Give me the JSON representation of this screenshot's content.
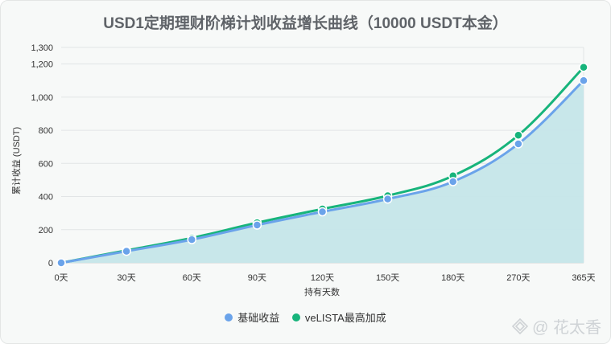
{
  "colors": {
    "base": "#6aa3ea",
    "velista": "#17b47b",
    "area": "#c5e6e9"
  },
  "watermark": {
    "text": "@ 花太香",
    "icon": "diamond-logo-icon"
  },
  "chart_data": {
    "type": "line",
    "title": "USD1定期理财阶梯计划收益增长曲线（10000 USDT本金）",
    "xlabel": "持有天数",
    "ylabel": "累计收益 (USDT)",
    "categories": [
      "0天",
      "30天",
      "60天",
      "90天",
      "120天",
      "150天",
      "180天",
      "270天",
      "365天"
    ],
    "ylim": [
      0,
      1300
    ],
    "yticks": [
      0,
      200,
      400,
      600,
      800,
      "1,000",
      "1,200",
      "1,300"
    ],
    "ytick_values": [
      0,
      200,
      400,
      600,
      800,
      1000,
      1200,
      1300
    ],
    "grid": true,
    "legend_position": "bottom",
    "series": [
      {
        "name": "基础收益",
        "values": [
          0,
          70,
          140,
          228,
          308,
          385,
          490,
          718,
          1100
        ],
        "fill": true
      },
      {
        "name": "veLISTA最高加成",
        "values": [
          0,
          75,
          150,
          242,
          325,
          405,
          525,
          770,
          1180
        ],
        "fill": false
      }
    ]
  }
}
